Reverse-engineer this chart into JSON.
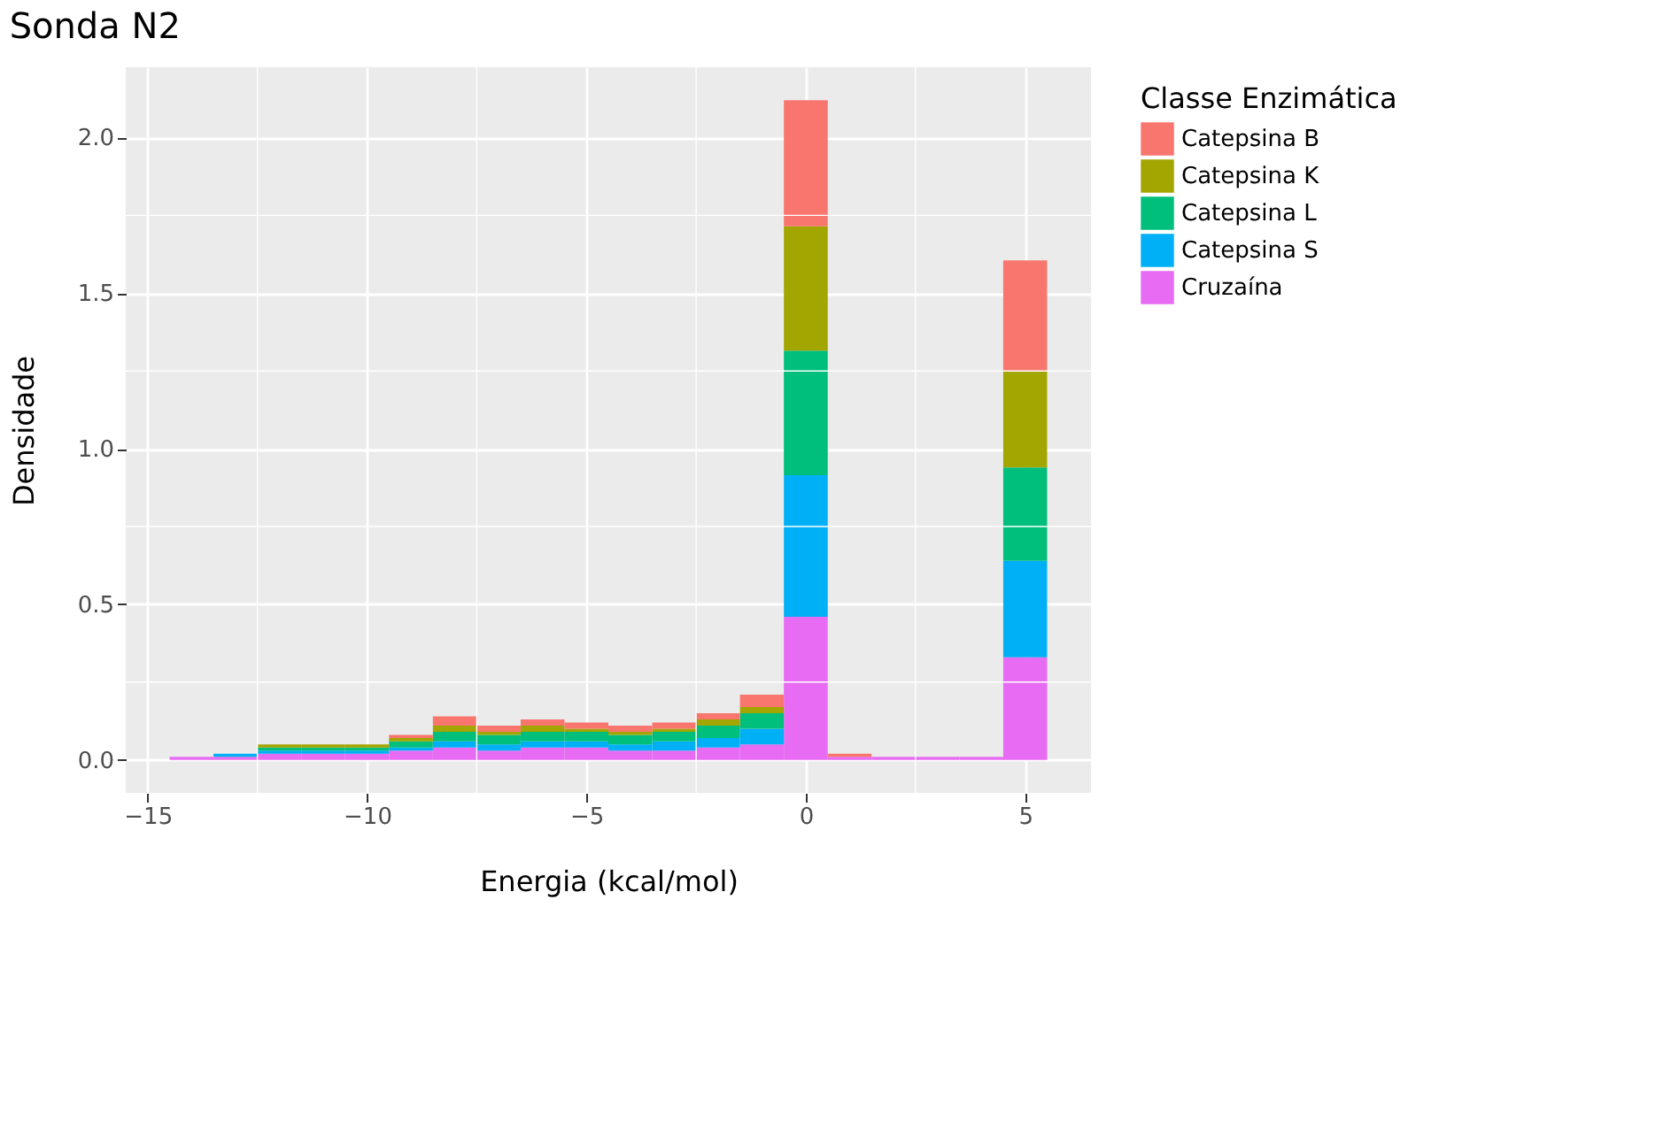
{
  "chart_data": {
    "type": "bar",
    "title": "Sonda N2",
    "xlabel": "Energia (kcal/mol)",
    "ylabel": "Densidade",
    "legend_title": "Classe Enzimática",
    "stacked": true,
    "x": [
      -14,
      -13,
      -12,
      -11,
      -10,
      -9,
      -8,
      -7,
      -6,
      -5,
      -4,
      -3,
      -2,
      -1,
      0,
      1,
      2,
      3,
      4,
      5
    ],
    "series": [
      {
        "name": "Cruzaína",
        "color": "#e76bf3",
        "values": [
          0.01,
          0.01,
          0.02,
          0.02,
          0.02,
          0.03,
          0.04,
          0.03,
          0.04,
          0.04,
          0.03,
          0.03,
          0.04,
          0.05,
          0.46,
          0.01,
          0.01,
          0.01,
          0.01,
          0.33
        ]
      },
      {
        "name": "Catepsina S",
        "color": "#00b0f6",
        "values": [
          0,
          0.01,
          0.01,
          0.01,
          0.01,
          0.01,
          0.02,
          0.02,
          0.02,
          0.02,
          0.02,
          0.03,
          0.03,
          0.05,
          0.455,
          0,
          0,
          0,
          0,
          0.31
        ]
      },
      {
        "name": "Catepsina L",
        "color": "#00bf7d",
        "values": [
          0,
          0,
          0.01,
          0.01,
          0.01,
          0.02,
          0.03,
          0.03,
          0.03,
          0.03,
          0.03,
          0.03,
          0.04,
          0.05,
          0.4,
          0,
          0,
          0,
          0,
          0.3
        ]
      },
      {
        "name": "Catepsina K",
        "color": "#a3a500",
        "values": [
          0,
          0,
          0.01,
          0.01,
          0.01,
          0.01,
          0.02,
          0.01,
          0.02,
          0.01,
          0.01,
          0.01,
          0.02,
          0.02,
          0.4,
          0,
          0,
          0,
          0,
          0.31
        ]
      },
      {
        "name": "Catepsina B",
        "color": "#f8766d",
        "values": [
          0,
          0,
          0,
          0,
          0,
          0.01,
          0.03,
          0.02,
          0.02,
          0.02,
          0.02,
          0.02,
          0.02,
          0.04,
          0.405,
          0.01,
          0,
          0,
          0,
          0.355
        ]
      }
    ],
    "xlim": [
      -15.5,
      6.5
    ],
    "xticks": [
      -15,
      -10,
      -5,
      0,
      5
    ],
    "ylim": [
      -0.106,
      2.226
    ],
    "yticks": [
      {
        "value": 0,
        "label": "0.0"
      },
      {
        "value": 0.5,
        "label": "0.5"
      },
      {
        "value": 1,
        "label": "1.0"
      },
      {
        "value": 1.5,
        "label": "1.5"
      },
      {
        "value": 2,
        "label": "2.0"
      }
    ],
    "grid": true,
    "legend": "right"
  }
}
